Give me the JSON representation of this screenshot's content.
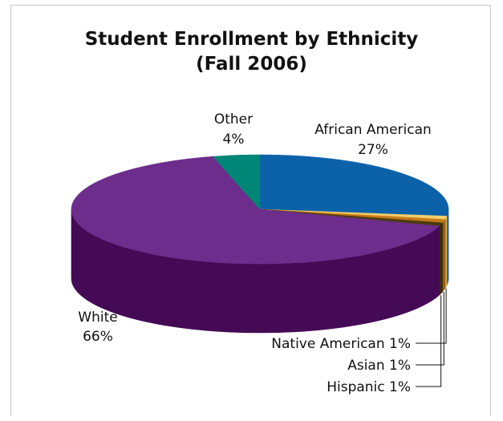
{
  "chart_data": {
    "type": "pie",
    "style": "3d",
    "title": [
      "Student Enrollment by Ethnicity",
      "(Fall 2006)"
    ],
    "slices": [
      {
        "name": "African American",
        "value_label": "27%",
        "value": 27,
        "color": "#0c62a8",
        "side_color": "#0a4f88"
      },
      {
        "name": "Native American",
        "value_label": "1%",
        "value": 1,
        "color": "#f1ce6a",
        "side_color": "#c9a546"
      },
      {
        "name": "Asian",
        "value_label": "1%",
        "value": 1,
        "color": "#c67a1a",
        "side_color": "#9a5d12"
      },
      {
        "name": "Hispanic",
        "value_label": "1%",
        "value": 1,
        "color": "#4d3b0f",
        "side_color": "#3a2c0b"
      },
      {
        "name": "White",
        "value_label": "66%",
        "value": 66,
        "color": "#6c2d8c",
        "side_color": "#450a55"
      },
      {
        "name": "Other",
        "value_label": "4%",
        "value": 4,
        "color": "#008677",
        "side_color": "#006a5e"
      }
    ]
  }
}
